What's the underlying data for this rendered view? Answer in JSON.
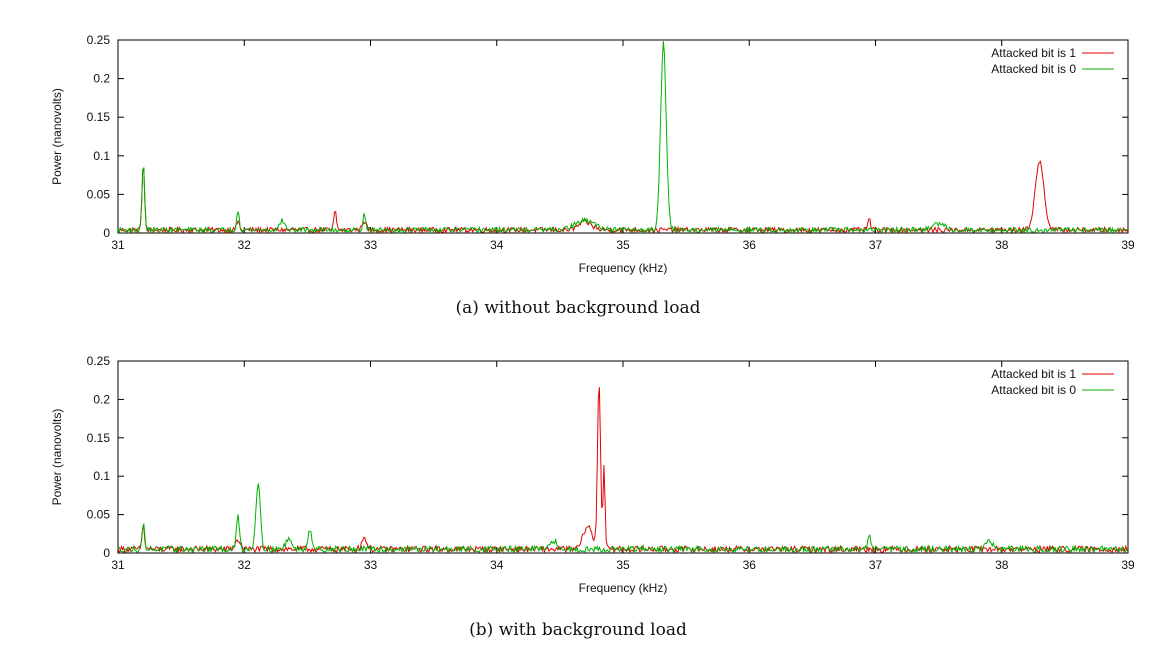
{
  "figure": {
    "panels": [
      {
        "caption": "(a) without background load"
      },
      {
        "caption": "(b) with background load"
      }
    ]
  },
  "colors": {
    "series_1": "#e00000",
    "series_0": "#00b000",
    "axis": "#000000"
  },
  "chart_data": [
    {
      "type": "line",
      "xlabel": "Frequency (kHz)",
      "ylabel": "Power (nanovolts)",
      "xlim": [
        31,
        39
      ],
      "ylim": [
        0,
        0.25
      ],
      "xticks": [
        31,
        32,
        33,
        34,
        35,
        36,
        37,
        38,
        39
      ],
      "yticks": [
        0,
        0.05,
        0.1,
        0.15,
        0.2,
        0.25
      ],
      "ytick_labels": [
        "0",
        "0.05",
        "0.1",
        "0.15",
        "0.2",
        "0.25"
      ],
      "grid": false,
      "legend_position": "top-right",
      "series": [
        {
          "name": "Attacked bit is 1",
          "color": "#e00000",
          "baseline": 0.004,
          "peaks": [
            {
              "x": 31.2,
              "y": 0.086,
              "width": 0.01
            },
            {
              "x": 31.95,
              "y": 0.012,
              "width": 0.01
            },
            {
              "x": 32.72,
              "y": 0.024,
              "width": 0.01
            },
            {
              "x": 32.95,
              "y": 0.012,
              "width": 0.015
            },
            {
              "x": 34.7,
              "y": 0.01,
              "width": 0.05
            },
            {
              "x": 36.95,
              "y": 0.015,
              "width": 0.01
            },
            {
              "x": 38.3,
              "y": 0.088,
              "width": 0.035
            }
          ]
        },
        {
          "name": "Attacked bit is 0",
          "color": "#00b000",
          "baseline": 0.004,
          "peaks": [
            {
              "x": 31.2,
              "y": 0.086,
              "width": 0.01
            },
            {
              "x": 31.95,
              "y": 0.027,
              "width": 0.01
            },
            {
              "x": 32.3,
              "y": 0.012,
              "width": 0.02
            },
            {
              "x": 32.95,
              "y": 0.022,
              "width": 0.01
            },
            {
              "x": 34.7,
              "y": 0.012,
              "width": 0.08
            },
            {
              "x": 35.32,
              "y": 0.243,
              "width": 0.022
            },
            {
              "x": 37.5,
              "y": 0.008,
              "width": 0.05
            }
          ]
        }
      ]
    },
    {
      "type": "line",
      "xlabel": "Frequency (kHz)",
      "ylabel": "Power (nanovolts)",
      "xlim": [
        31,
        39
      ],
      "ylim": [
        0,
        0.25
      ],
      "xticks": [
        31,
        32,
        33,
        34,
        35,
        36,
        37,
        38,
        39
      ],
      "yticks": [
        0,
        0.05,
        0.1,
        0.15,
        0.2,
        0.25
      ],
      "ytick_labels": [
        "0",
        "0.05",
        "0.1",
        "0.15",
        "0.2",
        "0.25"
      ],
      "grid": false,
      "legend_position": "top-right",
      "series": [
        {
          "name": "Attacked bit is 1",
          "color": "#e00000",
          "baseline": 0.005,
          "peaks": [
            {
              "x": 31.2,
              "y": 0.03,
              "width": 0.01
            },
            {
              "x": 31.95,
              "y": 0.012,
              "width": 0.02
            },
            {
              "x": 32.95,
              "y": 0.015,
              "width": 0.02
            },
            {
              "x": 34.72,
              "y": 0.03,
              "width": 0.035
            },
            {
              "x": 34.81,
              "y": 0.218,
              "width": 0.012
            },
            {
              "x": 34.85,
              "y": 0.11,
              "width": 0.008
            }
          ]
        },
        {
          "name": "Attacked bit is 0",
          "color": "#00b000",
          "baseline": 0.005,
          "peaks": [
            {
              "x": 31.2,
              "y": 0.033,
              "width": 0.01
            },
            {
              "x": 31.95,
              "y": 0.043,
              "width": 0.012
            },
            {
              "x": 32.11,
              "y": 0.086,
              "width": 0.018
            },
            {
              "x": 32.35,
              "y": 0.015,
              "width": 0.02
            },
            {
              "x": 32.52,
              "y": 0.027,
              "width": 0.015
            },
            {
              "x": 34.45,
              "y": 0.012,
              "width": 0.02
            },
            {
              "x": 36.95,
              "y": 0.018,
              "width": 0.012
            },
            {
              "x": 37.9,
              "y": 0.01,
              "width": 0.03
            }
          ]
        }
      ]
    }
  ]
}
